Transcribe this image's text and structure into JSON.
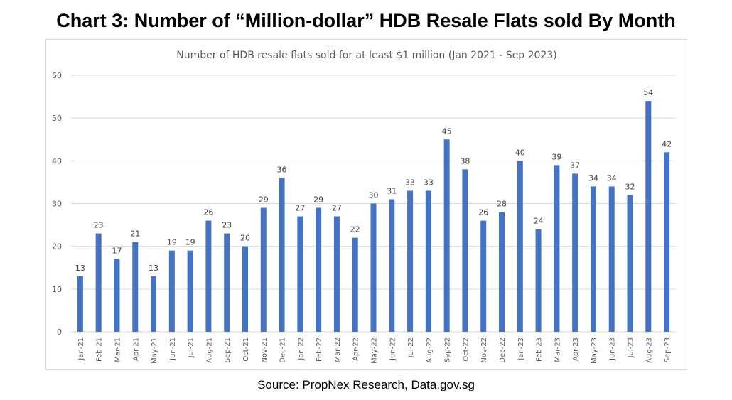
{
  "heading": "Chart 3: Number of “Million-dollar” HDB Resale Flats sold By Month",
  "source": "Source: PropNex Research, Data.gov.sg",
  "chart_data": {
    "type": "bar",
    "title": "Number of HDB resale flats sold for at least $1 million (Jan 2021 - Sep 2023)",
    "xlabel": "",
    "ylabel": "",
    "ylim": [
      0,
      60
    ],
    "yticks": [
      0,
      10,
      20,
      30,
      40,
      50,
      60
    ],
    "grid": true,
    "legend": "none",
    "bar_color": "#4472c4",
    "categories": [
      "Jan-21",
      "Feb-21",
      "Mar-21",
      "Apr-21",
      "May-21",
      "Jun-21",
      "Jul-21",
      "Aug-21",
      "Sep-21",
      "Oct-21",
      "Nov-21",
      "Dec-21",
      "Jan-22",
      "Feb-22",
      "Mar-22",
      "Apr-22",
      "May-22",
      "Jun-22",
      "Jul-22",
      "Aug-22",
      "Sep-22",
      "Oct-22",
      "Nov-22",
      "Dec-22",
      "Jan-23",
      "Feb-23",
      "Mar-23",
      "Apr-23",
      "May-23",
      "Jun-23",
      "Jul-23",
      "Aug-23",
      "Sep-23"
    ],
    "values": [
      13,
      23,
      17,
      21,
      13,
      19,
      19,
      26,
      23,
      20,
      29,
      36,
      27,
      29,
      27,
      22,
      30,
      31,
      33,
      33,
      45,
      38,
      26,
      28,
      40,
      24,
      39,
      37,
      34,
      34,
      32,
      54,
      42
    ]
  }
}
